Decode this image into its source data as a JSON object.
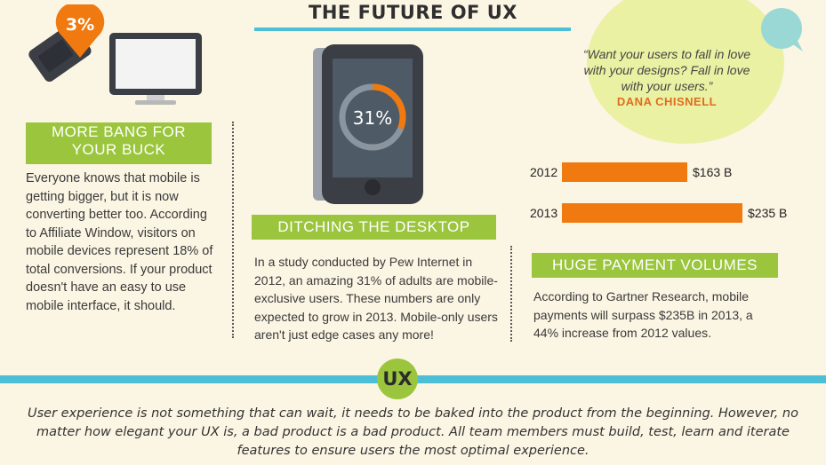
{
  "header": {
    "title": "THE FUTURE OF UX"
  },
  "left_section": {
    "badge": "3%",
    "banner_line1": "MORE BANG FOR",
    "banner_line2": "YOUR BUCK",
    "body": "Everyone knows that mobile is getting bigger, but it is now converting better too. According to Affiliate Window, visitors on mobile devices represent 18% of total conversions. If your product doesn't have an easy to use mobile interface, it should."
  },
  "middle_section": {
    "phone_stat": "31%",
    "phone_stat_fraction": 0.31,
    "banner": "DITCHING THE DESKTOP",
    "body": "In a study conducted by Pew Internet in 2012, an amazing 31% of adults are mobile-exclusive users. These numbers are only expected to grow in 2013. Mobile-only users aren't just edge cases any more!"
  },
  "right_section": {
    "quote": "“Want your users to fall in love with your designs? Fall in love with your users.”",
    "author": "DANA CHISNELL",
    "banner": "HUGE PAYMENT VOLUMES",
    "body": "According to Gartner Research, mobile payments will surpass $235B in 2013, a 44% increase from 2012 values."
  },
  "chart_data": {
    "type": "bar",
    "orientation": "horizontal",
    "categories": [
      "2012",
      "2013"
    ],
    "values": [
      163,
      235
    ],
    "value_labels": [
      "$163 B",
      "$235 B"
    ],
    "color": "#f07a10"
  },
  "footer": {
    "badge": "UX",
    "closing": "User experience is not something that can wait, it needs to be baked into the product from the beginning. However, no matter how elegant your UX is, a bad product is a bad product. All team members must build, test, learn and iterate features to ensure users the most optimal experience."
  },
  "colors": {
    "background": "#fbf5e3",
    "accent_green": "#9bc53d",
    "accent_blue": "#4cbfd6",
    "accent_orange": "#f07a10",
    "quote_bg": "#eaf1a3"
  },
  "icons": [
    "mobile-phone-icon",
    "discount-tag-icon",
    "desktop-monitor-icon",
    "smartphone-icon",
    "chat-bubble-icon"
  ]
}
